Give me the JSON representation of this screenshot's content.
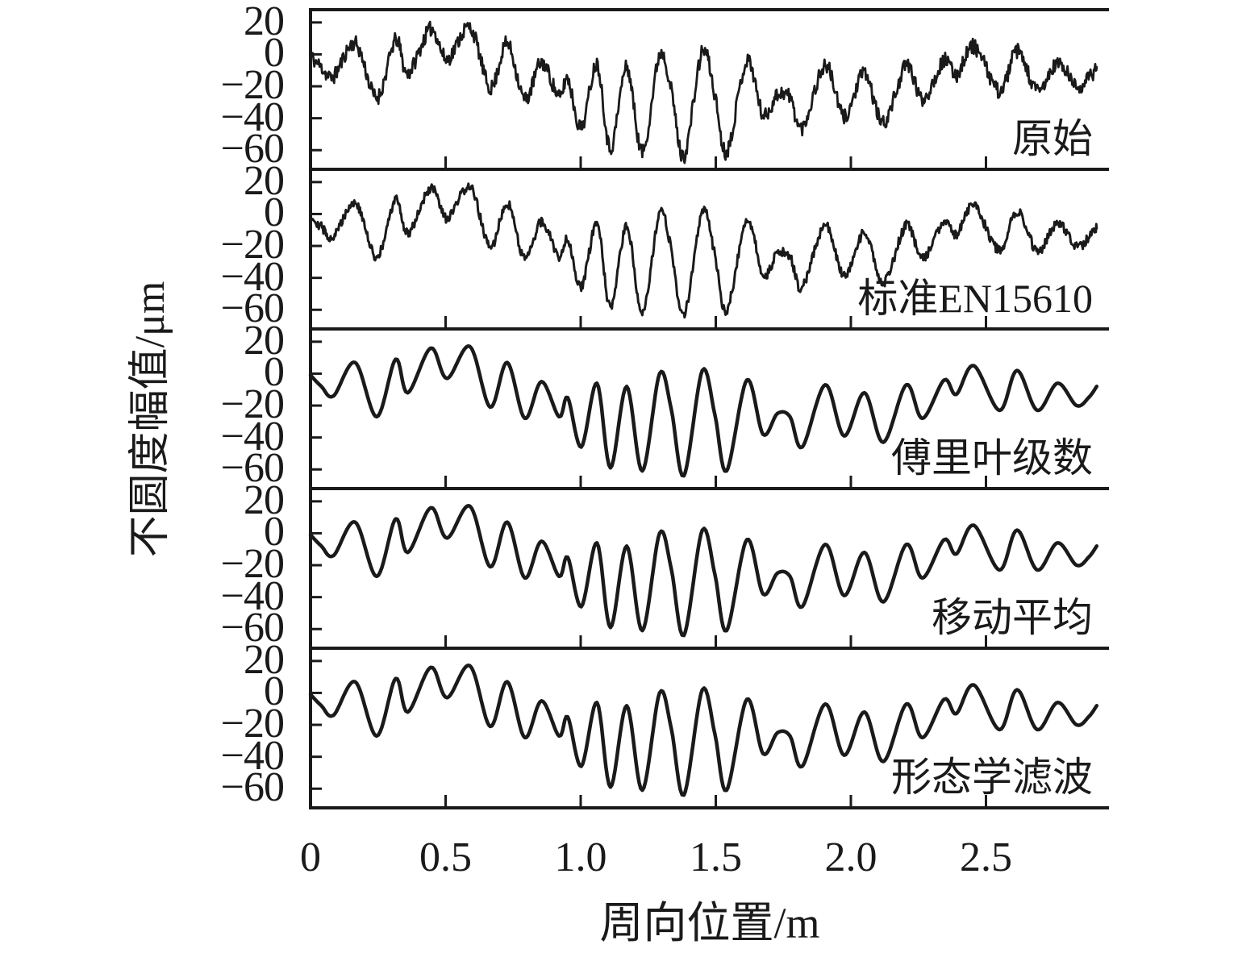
{
  "figure": {
    "description": "Stacked five-panel line chart comparing wheel out-of-roundness signals before and after different filtering methods",
    "background_color": "#ffffff",
    "line_color": "#1a1a1a",
    "text_color": "#1a1a1a"
  },
  "chart_data": {
    "type": "line",
    "title": "",
    "xlabel": "周向位置/m",
    "ylabel": "不圆度幅值/μm",
    "x_range": [
      0,
      2.91
    ],
    "panel_y_range": [
      -72,
      28
    ],
    "grid": false,
    "legend_position": "none",
    "x_tick_values": [
      0,
      0.5,
      1.0,
      1.5,
      2.0,
      2.5
    ],
    "x_tick_labels": [
      "0",
      "0.5",
      "1.0",
      "1.5",
      "2.0",
      "2.5"
    ],
    "y_tick_values": [
      20,
      0,
      -20,
      -40,
      -60
    ],
    "y_tick_labels": [
      "20",
      "0",
      "−20",
      "−40",
      "−60"
    ],
    "panels": [
      {
        "label": "原始",
        "noise_amplitude": 4.8,
        "seed": 11,
        "stroke_width": 2.8
      },
      {
        "label": "标准EN15610",
        "noise_amplitude": 3.0,
        "seed": 29,
        "stroke_width": 3.0
      },
      {
        "label": "傅里叶级数",
        "noise_amplitude": 0,
        "seed": 1,
        "stroke_width": 4.5
      },
      {
        "label": "移动平均",
        "noise_amplitude": 0,
        "seed": 2,
        "stroke_width": 4.5
      },
      {
        "label": "形态学滤波",
        "noise_amplitude": 0,
        "seed": 3,
        "stroke_width": 4.5
      }
    ],
    "base_curve_keypoints": [
      [
        0.0,
        -1
      ],
      [
        0.04,
        -8
      ],
      [
        0.085,
        -14
      ],
      [
        0.165,
        7
      ],
      [
        0.245,
        -27
      ],
      [
        0.315,
        9
      ],
      [
        0.36,
        -12
      ],
      [
        0.445,
        16
      ],
      [
        0.505,
        -3
      ],
      [
        0.59,
        17
      ],
      [
        0.665,
        -21
      ],
      [
        0.728,
        7
      ],
      [
        0.793,
        -28
      ],
      [
        0.855,
        -5
      ],
      [
        0.92,
        -27
      ],
      [
        0.952,
        -15
      ],
      [
        1.002,
        -46
      ],
      [
        1.06,
        -6
      ],
      [
        1.11,
        -59
      ],
      [
        1.17,
        -8
      ],
      [
        1.228,
        -61
      ],
      [
        1.292,
        0
      ],
      [
        1.335,
        -22
      ],
      [
        1.382,
        -64
      ],
      [
        1.45,
        2
      ],
      [
        1.497,
        -26
      ],
      [
        1.54,
        -61
      ],
      [
        1.615,
        -4
      ],
      [
        1.675,
        -38
      ],
      [
        1.728,
        -25
      ],
      [
        1.775,
        -27
      ],
      [
        1.82,
        -46
      ],
      [
        1.905,
        -7
      ],
      [
        1.975,
        -39
      ],
      [
        2.05,
        -12
      ],
      [
        2.12,
        -43
      ],
      [
        2.205,
        -7
      ],
      [
        2.265,
        -28
      ],
      [
        2.345,
        -4
      ],
      [
        2.39,
        -13
      ],
      [
        2.455,
        5
      ],
      [
        2.55,
        -23
      ],
      [
        2.615,
        2
      ],
      [
        2.69,
        -23
      ],
      [
        2.765,
        -6
      ],
      [
        2.835,
        -20
      ],
      [
        2.88,
        -15
      ],
      [
        2.91,
        -8
      ]
    ]
  }
}
